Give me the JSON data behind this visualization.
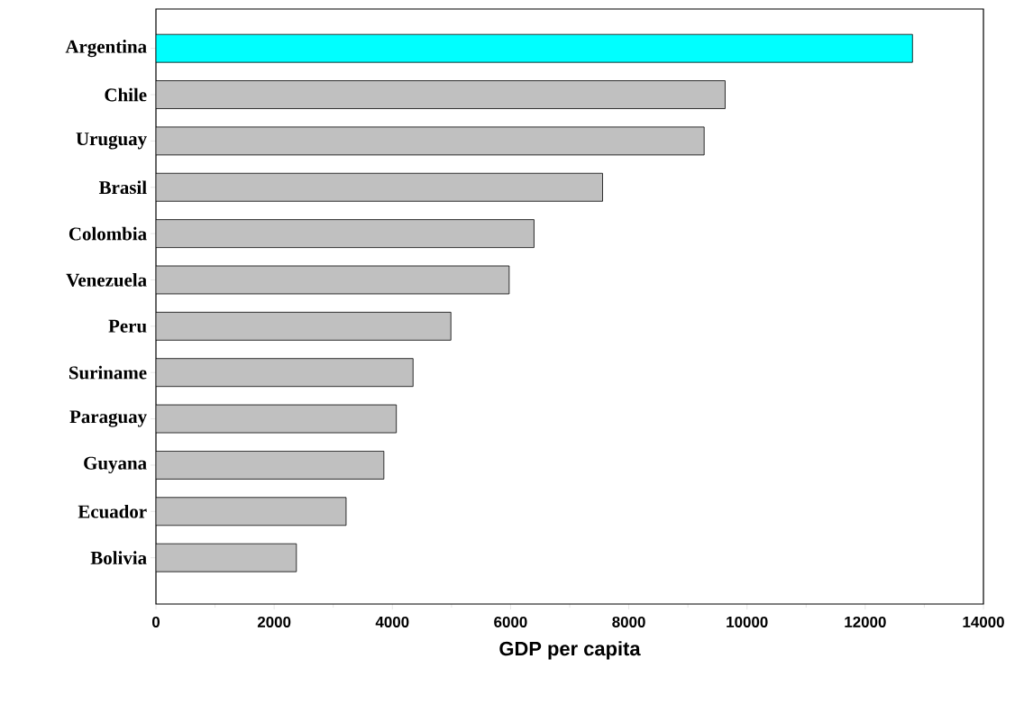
{
  "chart_data": {
    "type": "bar",
    "orientation": "horizontal",
    "xlabel": "GDP per capita",
    "categories": [
      "Argentina",
      "Chile",
      "Uruguay",
      "Brasil",
      "Colombia",
      "Venezuela",
      "Peru",
      "Suriname",
      "Paraguay",
      "Guyana",
      "Ecuador",
      "Bolivia"
    ],
    "values": [
      12800,
      9630,
      9275,
      7557,
      6397,
      5976,
      4990,
      4350,
      4067,
      3856,
      3217,
      2376
    ],
    "colors": [
      "#00ffff",
      "#c0c0c0",
      "#c0c0c0",
      "#c0c0c0",
      "#c0c0c0",
      "#c0c0c0",
      "#c0c0c0",
      "#c0c0c0",
      "#c0c0c0",
      "#c0c0c0",
      "#c0c0c0",
      "#c0c0c0"
    ],
    "xlim": [
      0,
      14000
    ],
    "xticks": [
      0,
      2000,
      4000,
      6000,
      8000,
      10000,
      12000,
      14000
    ],
    "grid": false,
    "legend": false
  }
}
